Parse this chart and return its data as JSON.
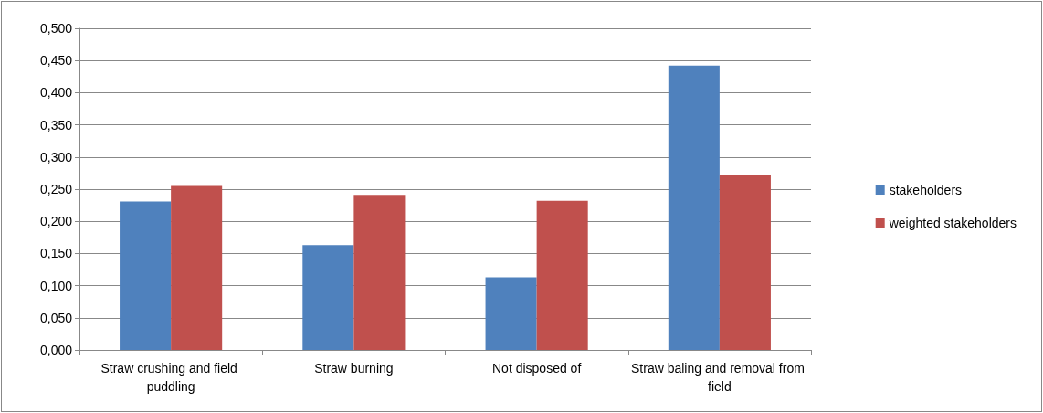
{
  "chart_data": {
    "type": "bar",
    "categories": [
      "Straw crushing and field puddling",
      "Straw burning",
      "Not disposed of",
      "Straw baling and removal from field"
    ],
    "series": [
      {
        "name": "stakeholders",
        "color": "#4f81bd",
        "values": [
          0.231,
          0.163,
          0.113,
          0.442
        ]
      },
      {
        "name": "weighted stakeholders",
        "color": "#c0504d",
        "values": [
          0.255,
          0.241,
          0.232,
          0.272
        ]
      }
    ],
    "ylim": [
      0,
      0.5
    ],
    "yticks": [
      {
        "value": 0,
        "label": "0,000"
      },
      {
        "value": 0.05,
        "label": "0,050"
      },
      {
        "value": 0.1,
        "label": "0,100"
      },
      {
        "value": 0.15,
        "label": "0,150"
      },
      {
        "value": 0.2,
        "label": "0,200"
      },
      {
        "value": 0.25,
        "label": "0,250"
      },
      {
        "value": 0.3,
        "label": "0,300"
      },
      {
        "value": 0.35,
        "label": "0,350"
      },
      {
        "value": 0.4,
        "label": "0,400"
      },
      {
        "value": 0.45,
        "label": "0,450"
      },
      {
        "value": 0.5,
        "label": "0,500"
      }
    ],
    "grid": "y",
    "legend": "right"
  }
}
